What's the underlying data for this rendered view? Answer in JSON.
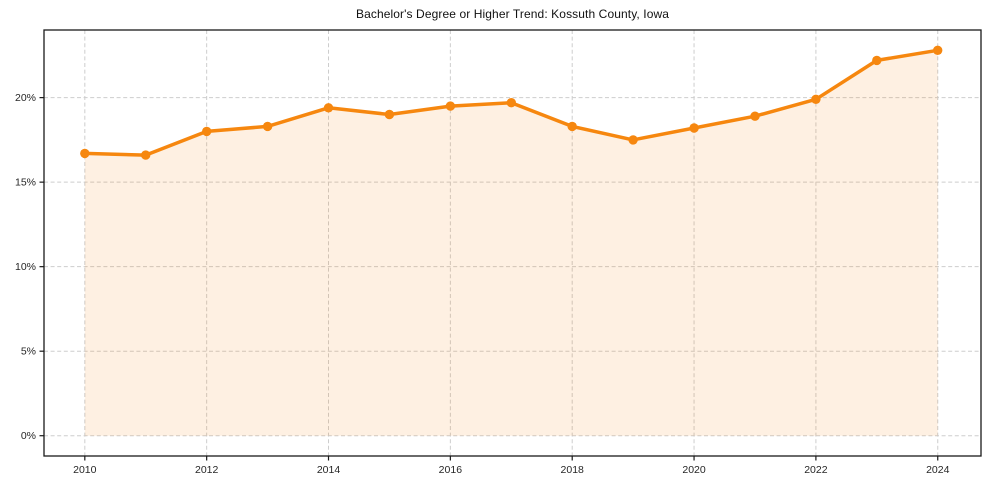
{
  "title": "Bachelor's Degree or Higher Trend: Kossuth County, Iowa",
  "colors": {
    "line": "#f6870f",
    "area_fill": "rgba(246,135,15,0.12)",
    "grid": "#cdcdcd",
    "spine": "#1a1a1a",
    "tick_text": "#262626",
    "background": "#ffffff"
  },
  "chart_data": {
    "type": "area",
    "title": "Bachelor's Degree or Higher Trend: Kossuth County, Iowa",
    "xlabel": "",
    "ylabel": "",
    "x": [
      2010,
      2011,
      2012,
      2013,
      2014,
      2015,
      2016,
      2017,
      2018,
      2019,
      2020,
      2021,
      2022,
      2023,
      2024
    ],
    "series": [
      {
        "name": "Bachelor's degree or higher (%)",
        "values": [
          16.7,
          16.6,
          18.0,
          18.3,
          19.4,
          19.0,
          19.5,
          19.7,
          18.3,
          17.5,
          18.2,
          18.9,
          19.9,
          22.2,
          22.8
        ]
      }
    ],
    "x_ticks": [
      2010,
      2012,
      2014,
      2016,
      2018,
      2020,
      2022,
      2024
    ],
    "x_tick_labels": [
      "2010",
      "2012",
      "2014",
      "2016",
      "2018",
      "2020",
      "2022",
      "2024"
    ],
    "y_ticks": [
      0,
      5,
      10,
      15,
      20
    ],
    "y_tick_labels": [
      "0%",
      "5%",
      "10%",
      "15%",
      "20%"
    ],
    "xlim": [
      2009.33,
      2024.71
    ],
    "ylim": [
      -1.2,
      24
    ],
    "grid": true,
    "grid_style": "dashed",
    "legend": "none",
    "marker": "circle",
    "baseline": 0
  }
}
